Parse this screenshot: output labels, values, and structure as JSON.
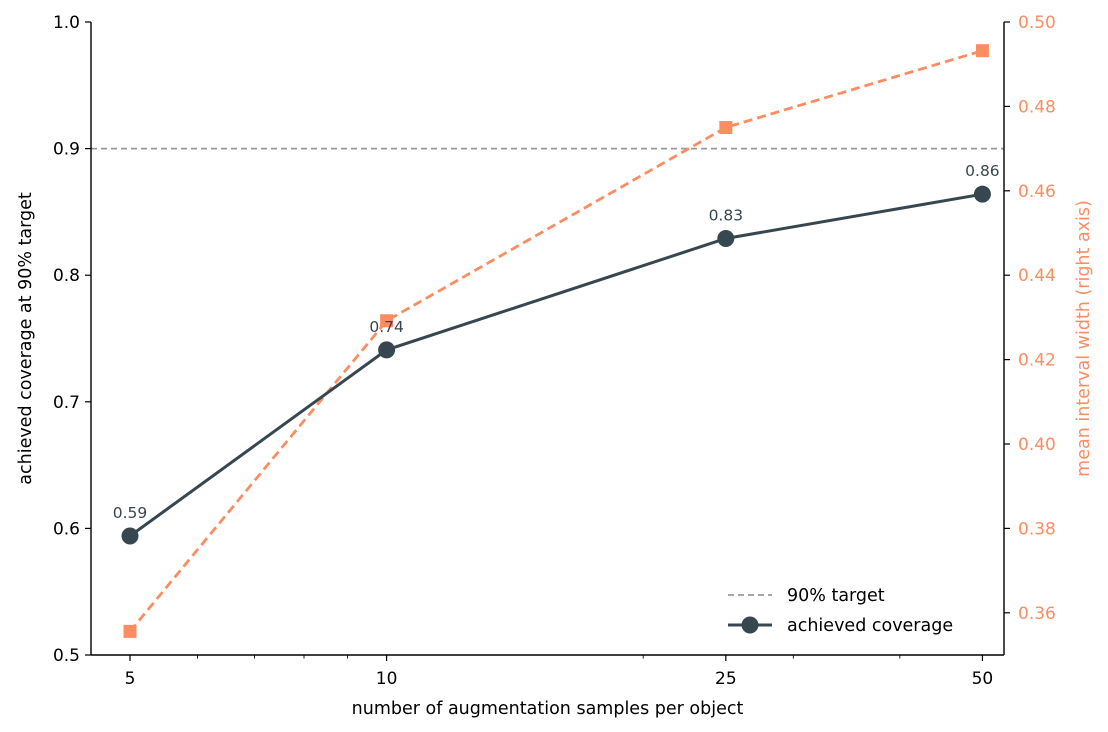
{
  "chart_data": {
    "type": "line",
    "x": [
      5,
      10,
      25,
      50
    ],
    "xscale": "log",
    "xlim": [
      4.5,
      53
    ],
    "x_ticks": [
      "5",
      "10",
      "25",
      "50"
    ],
    "xlabel": "number of augmentation samples per object",
    "ylabel": "achieved coverage at 90% target",
    "ylim": [
      0.5,
      1.0
    ],
    "y_ticks": [
      "0.5",
      "0.6",
      "0.7",
      "0.8",
      "0.9",
      "1.0"
    ],
    "ylabel_right": "mean interval width (right axis)",
    "ylim_right": [
      0.35,
      0.5
    ],
    "y_ticks_right": [
      "0.36",
      "0.38",
      "0.40",
      "0.42",
      "0.44",
      "0.46",
      "0.48",
      "0.50"
    ],
    "reference_line": {
      "name": "90% target",
      "y": 0.9,
      "color": "#999999"
    },
    "series": [
      {
        "name": "achieved coverage",
        "axis": "left",
        "values": [
          0.594,
          0.741,
          0.829,
          0.864
        ],
        "labels": [
          "0.59",
          "0.74",
          "0.83",
          "0.86"
        ],
        "color": "#37474f",
        "marker": "circle"
      },
      {
        "axis": "right",
        "values": [
          0.3556,
          0.4292,
          0.475,
          0.4932
        ],
        "color": "#fc8d62",
        "marker": "square",
        "linestyle": "dashed"
      }
    ],
    "legend": {
      "position": "lower-right",
      "entries": [
        "90% target",
        "achieved coverage"
      ]
    },
    "grid": false
  }
}
